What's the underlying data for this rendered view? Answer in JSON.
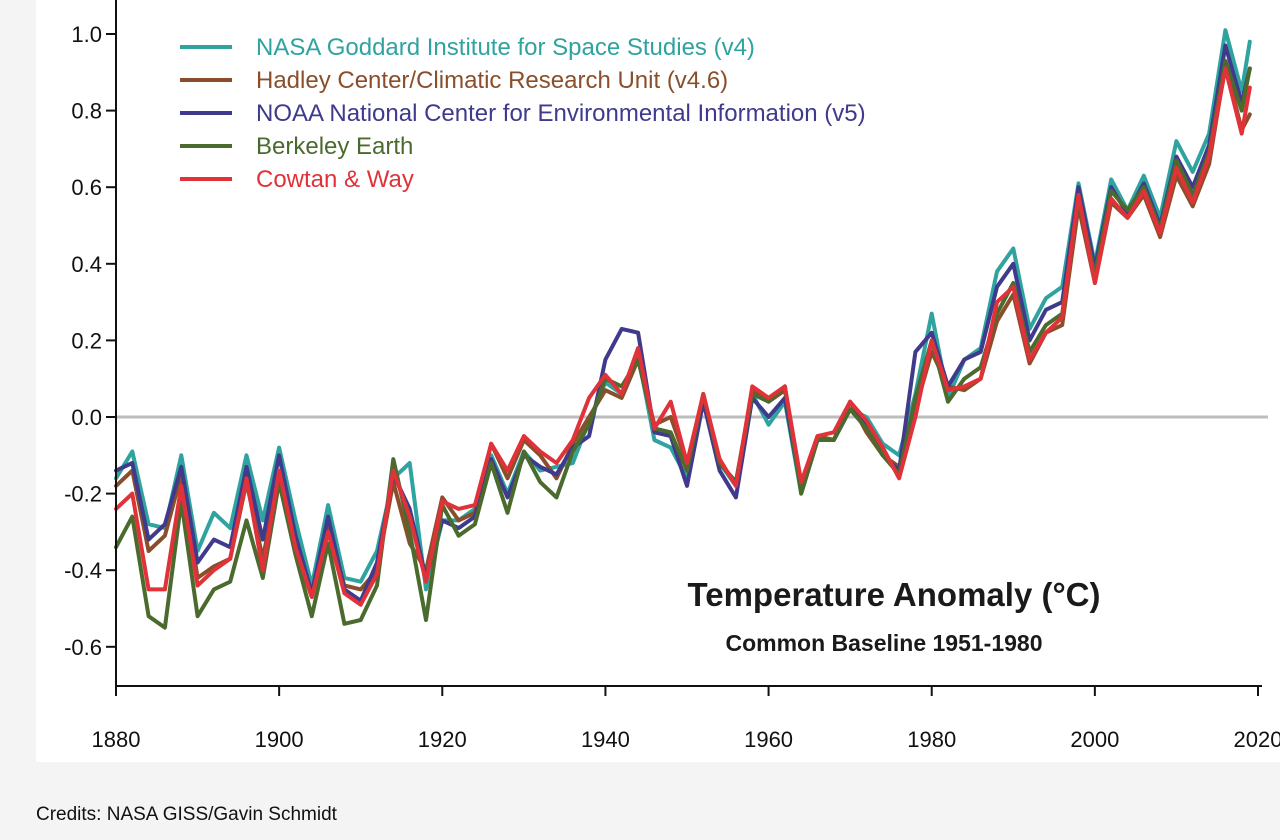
{
  "chart_data": {
    "type": "line",
    "title": "Temperature Anomaly (°C)",
    "subtitle": "Common Baseline 1951-1980",
    "xlabel": "",
    "ylabel": "",
    "xlim": [
      1880,
      2020
    ],
    "ylim": [
      -0.7,
      1.05
    ],
    "x_ticks": [
      1880,
      1900,
      1920,
      1940,
      1960,
      1980,
      2000,
      2020
    ],
    "y_ticks": [
      -0.6,
      -0.4,
      -0.2,
      0.0,
      0.2,
      0.4,
      0.6,
      0.8,
      1.0
    ],
    "y_tick_labels": [
      "-0.6",
      "-0.4",
      "-0.2",
      "0.0",
      "0.2",
      "0.4",
      "0.6",
      "0.8",
      "1.0"
    ],
    "reference_line": 0.0,
    "grid": false,
    "legend_position": "top-left",
    "series": [
      {
        "name": "NASA Goddard Institute for Space Studies (v4)",
        "color": "#2fa3a0",
        "x": [
          1880,
          1882,
          1884,
          1886,
          1888,
          1890,
          1892,
          1894,
          1896,
          1898,
          1900,
          1902,
          1904,
          1906,
          1908,
          1910,
          1912,
          1914,
          1916,
          1918,
          1920,
          1922,
          1924,
          1926,
          1928,
          1930,
          1932,
          1934,
          1936,
          1938,
          1940,
          1942,
          1944,
          1946,
          1948,
          1950,
          1952,
          1954,
          1956,
          1958,
          1960,
          1962,
          1964,
          1966,
          1968,
          1970,
          1972,
          1974,
          1976,
          1978,
          1980,
          1982,
          1984,
          1986,
          1988,
          1990,
          1992,
          1994,
          1996,
          1998,
          2000,
          2002,
          2004,
          2006,
          2008,
          2010,
          2012,
          2014,
          2016,
          2018,
          2019
        ],
        "y": [
          -0.16,
          -0.09,
          -0.28,
          -0.29,
          -0.1,
          -0.35,
          -0.25,
          -0.29,
          -0.1,
          -0.27,
          -0.08,
          -0.27,
          -0.44,
          -0.23,
          -0.42,
          -0.43,
          -0.35,
          -0.16,
          -0.12,
          -0.45,
          -0.27,
          -0.27,
          -0.24,
          -0.1,
          -0.2,
          -0.09,
          -0.14,
          -0.13,
          -0.12,
          -0.01,
          0.09,
          0.06,
          0.16,
          -0.06,
          -0.08,
          -0.16,
          0.04,
          -0.12,
          -0.18,
          0.06,
          -0.02,
          0.04,
          -0.2,
          -0.06,
          -0.06,
          0.02,
          0.0,
          -0.07,
          -0.1,
          0.06,
          0.27,
          0.05,
          0.15,
          0.18,
          0.38,
          0.44,
          0.23,
          0.31,
          0.34,
          0.61,
          0.4,
          0.62,
          0.54,
          0.63,
          0.52,
          0.72,
          0.64,
          0.74,
          1.01,
          0.85,
          0.98
        ]
      },
      {
        "name": "Hadley Center/Climatic Research Unit (v4.6)",
        "color": "#8a4f2a",
        "x": [
          1880,
          1882,
          1884,
          1886,
          1888,
          1890,
          1892,
          1894,
          1896,
          1898,
          1900,
          1902,
          1904,
          1906,
          1908,
          1910,
          1912,
          1914,
          1916,
          1918,
          1920,
          1922,
          1924,
          1926,
          1928,
          1930,
          1932,
          1934,
          1936,
          1938,
          1940,
          1942,
          1944,
          1946,
          1948,
          1950,
          1952,
          1954,
          1956,
          1958,
          1960,
          1962,
          1964,
          1966,
          1968,
          1970,
          1972,
          1974,
          1976,
          1978,
          1980,
          1982,
          1984,
          1986,
          1988,
          1990,
          1992,
          1994,
          1996,
          1998,
          2000,
          2002,
          2004,
          2006,
          2008,
          2010,
          2012,
          2014,
          2016,
          2018,
          2019
        ],
        "y": [
          -0.18,
          -0.14,
          -0.35,
          -0.31,
          -0.15,
          -0.42,
          -0.39,
          -0.37,
          -0.17,
          -0.37,
          -0.15,
          -0.35,
          -0.47,
          -0.29,
          -0.44,
          -0.45,
          -0.4,
          -0.17,
          -0.33,
          -0.4,
          -0.21,
          -0.27,
          -0.25,
          -0.07,
          -0.16,
          -0.06,
          -0.1,
          -0.16,
          -0.07,
          0.0,
          0.07,
          0.05,
          0.15,
          -0.02,
          0.0,
          -0.12,
          0.05,
          -0.12,
          -0.17,
          0.07,
          0.04,
          0.07,
          -0.18,
          -0.05,
          -0.06,
          0.04,
          -0.04,
          -0.1,
          -0.13,
          0.02,
          0.17,
          0.08,
          0.07,
          0.1,
          0.25,
          0.32,
          0.14,
          0.22,
          0.24,
          0.55,
          0.35,
          0.56,
          0.52,
          0.58,
          0.47,
          0.63,
          0.55,
          0.66,
          0.92,
          0.75,
          0.79
        ]
      },
      {
        "name": "NOAA National Center for Environmental Information (v5)",
        "color": "#3f3a8c",
        "x": [
          1880,
          1882,
          1884,
          1886,
          1888,
          1890,
          1892,
          1894,
          1896,
          1898,
          1900,
          1902,
          1904,
          1906,
          1908,
          1910,
          1912,
          1914,
          1916,
          1918,
          1920,
          1922,
          1924,
          1926,
          1928,
          1930,
          1932,
          1934,
          1936,
          1938,
          1940,
          1942,
          1944,
          1946,
          1948,
          1950,
          1952,
          1954,
          1956,
          1958,
          1960,
          1962,
          1964,
          1966,
          1968,
          1970,
          1972,
          1974,
          1976,
          1978,
          1980,
          1982,
          1984,
          1986,
          1988,
          1990,
          1992,
          1994,
          1996,
          1998,
          2000,
          2002,
          2004,
          2006,
          2008,
          2010,
          2012,
          2014,
          2016,
          2018,
          2019
        ],
        "y": [
          -0.14,
          -0.12,
          -0.32,
          -0.28,
          -0.13,
          -0.38,
          -0.32,
          -0.34,
          -0.13,
          -0.32,
          -0.1,
          -0.31,
          -0.46,
          -0.26,
          -0.45,
          -0.48,
          -0.38,
          -0.15,
          -0.24,
          -0.42,
          -0.27,
          -0.29,
          -0.26,
          -0.11,
          -0.21,
          -0.1,
          -0.13,
          -0.15,
          -0.08,
          -0.05,
          0.15,
          0.23,
          0.22,
          -0.04,
          -0.05,
          -0.18,
          0.04,
          -0.14,
          -0.21,
          0.05,
          0.0,
          0.05,
          -0.19,
          -0.06,
          -0.06,
          0.02,
          -0.02,
          -0.1,
          -0.14,
          0.17,
          0.22,
          0.08,
          0.15,
          0.17,
          0.34,
          0.4,
          0.2,
          0.28,
          0.3,
          0.6,
          0.39,
          0.6,
          0.53,
          0.61,
          0.5,
          0.68,
          0.6,
          0.71,
          0.97,
          0.82,
          0.91
        ]
      },
      {
        "name": "Berkeley Earth",
        "color": "#4b6b2e",
        "x": [
          1880,
          1882,
          1884,
          1886,
          1888,
          1890,
          1892,
          1894,
          1896,
          1898,
          1900,
          1902,
          1904,
          1906,
          1908,
          1910,
          1912,
          1914,
          1916,
          1918,
          1920,
          1922,
          1924,
          1926,
          1928,
          1930,
          1932,
          1934,
          1936,
          1938,
          1940,
          1942,
          1944,
          1946,
          1948,
          1950,
          1952,
          1954,
          1956,
          1958,
          1960,
          1962,
          1964,
          1966,
          1968,
          1970,
          1972,
          1974,
          1976,
          1978,
          1980,
          1982,
          1984,
          1986,
          1988,
          1990,
          1992,
          1994,
          1996,
          1998,
          2000,
          2002,
          2004,
          2006,
          2008,
          2010,
          2012,
          2014,
          2016,
          2018,
          2019
        ],
        "y": [
          -0.34,
          -0.26,
          -0.52,
          -0.55,
          -0.22,
          -0.52,
          -0.45,
          -0.43,
          -0.27,
          -0.42,
          -0.17,
          -0.36,
          -0.52,
          -0.33,
          -0.54,
          -0.53,
          -0.44,
          -0.11,
          -0.3,
          -0.53,
          -0.23,
          -0.31,
          -0.28,
          -0.12,
          -0.25,
          -0.09,
          -0.17,
          -0.21,
          -0.09,
          -0.02,
          0.1,
          0.08,
          0.15,
          -0.03,
          -0.04,
          -0.14,
          0.06,
          -0.12,
          -0.17,
          0.06,
          0.04,
          0.08,
          -0.2,
          -0.06,
          -0.06,
          0.02,
          -0.03,
          -0.1,
          -0.15,
          0.05,
          0.2,
          0.04,
          0.1,
          0.13,
          0.27,
          0.35,
          0.17,
          0.24,
          0.27,
          0.57,
          0.37,
          0.59,
          0.54,
          0.6,
          0.49,
          0.67,
          0.58,
          0.69,
          0.93,
          0.8,
          0.91
        ]
      },
      {
        "name": "Cowtan & Way",
        "color": "#e03238",
        "x": [
          1880,
          1882,
          1884,
          1886,
          1888,
          1890,
          1892,
          1894,
          1896,
          1898,
          1900,
          1902,
          1904,
          1906,
          1908,
          1910,
          1912,
          1914,
          1916,
          1918,
          1920,
          1922,
          1924,
          1926,
          1928,
          1930,
          1932,
          1934,
          1936,
          1938,
          1940,
          1942,
          1944,
          1946,
          1948,
          1950,
          1952,
          1954,
          1956,
          1958,
          1960,
          1962,
          1964,
          1966,
          1968,
          1970,
          1972,
          1974,
          1976,
          1978,
          1980,
          1982,
          1984,
          1986,
          1988,
          1990,
          1992,
          1994,
          1996,
          1998,
          2000,
          2002,
          2004,
          2006,
          2008,
          2010,
          2012,
          2014,
          2016,
          2018,
          2019
        ],
        "y": [
          -0.24,
          -0.2,
          -0.45,
          -0.45,
          -0.18,
          -0.44,
          -0.4,
          -0.37,
          -0.16,
          -0.4,
          -0.14,
          -0.34,
          -0.47,
          -0.3,
          -0.46,
          -0.49,
          -0.41,
          -0.14,
          -0.26,
          -0.43,
          -0.22,
          -0.24,
          -0.23,
          -0.07,
          -0.14,
          -0.05,
          -0.09,
          -0.12,
          -0.06,
          0.05,
          0.11,
          0.06,
          0.18,
          -0.03,
          0.04,
          -0.12,
          0.06,
          -0.11,
          -0.18,
          0.08,
          0.05,
          0.08,
          -0.17,
          -0.05,
          -0.04,
          0.04,
          -0.01,
          -0.08,
          -0.16,
          0.0,
          0.2,
          0.07,
          0.08,
          0.1,
          0.3,
          0.34,
          0.15,
          0.22,
          0.26,
          0.58,
          0.35,
          0.57,
          0.52,
          0.59,
          0.48,
          0.65,
          0.56,
          0.68,
          0.91,
          0.74,
          0.86
        ]
      }
    ]
  },
  "credits": "Credits: NASA GISS/Gavin Schmidt"
}
